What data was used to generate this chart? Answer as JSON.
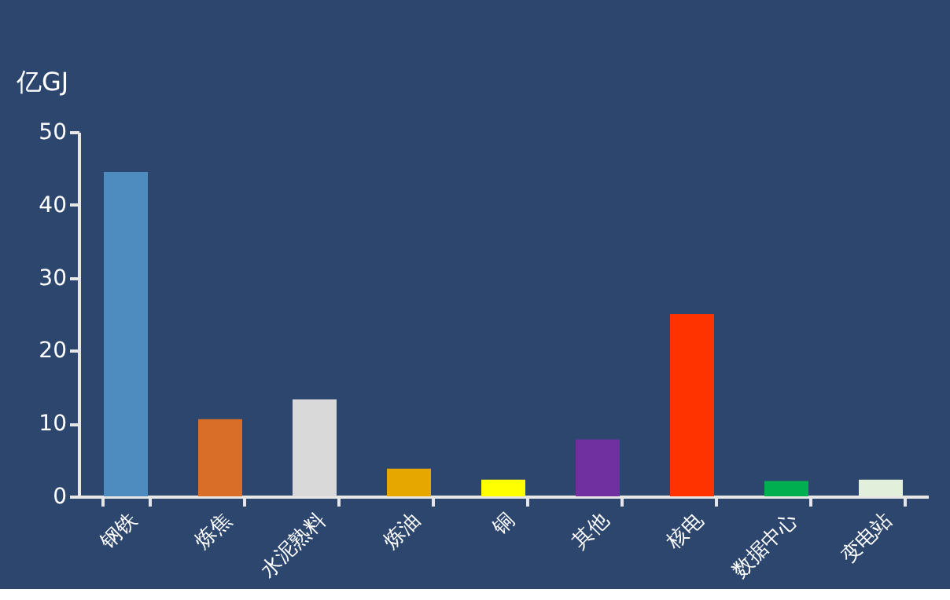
{
  "chart_data": {
    "type": "bar",
    "ylabel": "亿GJ",
    "categories": [
      "钢铁",
      "炼焦",
      "水泥熟料",
      "炼油",
      "铜",
      "其他",
      "核电",
      "数据中心",
      "变电站"
    ],
    "values": [
      44.5,
      10.6,
      13.3,
      3.8,
      2.3,
      7.8,
      25,
      2.1,
      2.3
    ],
    "colors": [
      "#4e8bbf",
      "#d86e27",
      "#d9d9d9",
      "#e6a800",
      "#ffff00",
      "#7030a0",
      "#ff3300",
      "#00b050",
      "#e2efda"
    ],
    "ylim": [
      0,
      50
    ],
    "yticks": [
      0,
      10,
      20,
      30,
      40,
      50
    ],
    "grid": false
  }
}
